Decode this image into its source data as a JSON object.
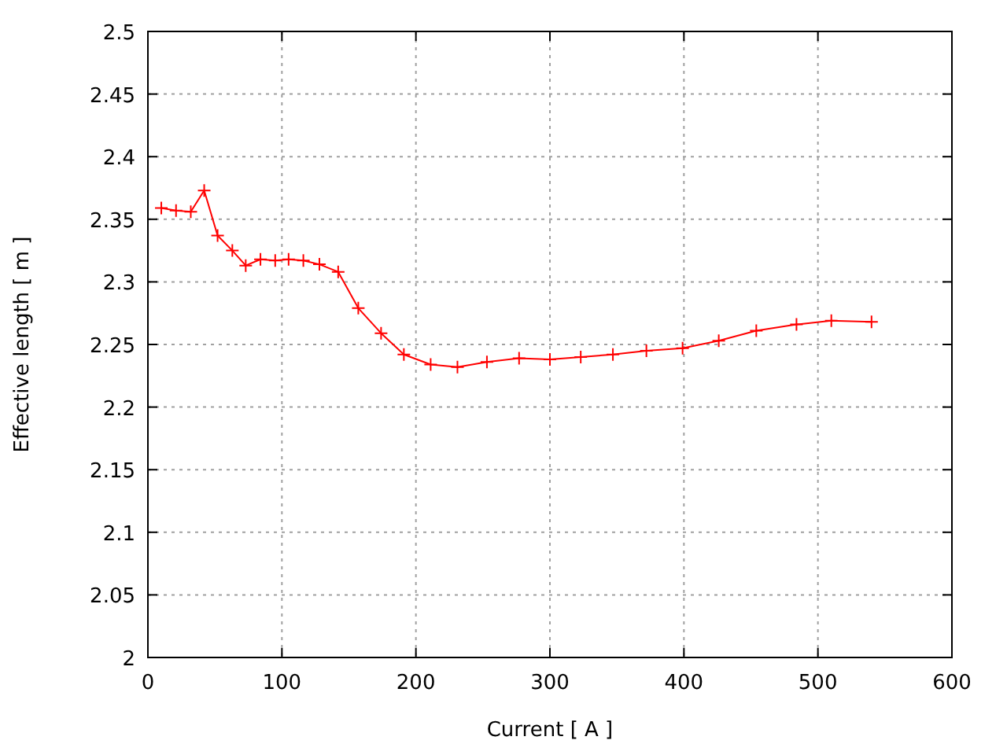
{
  "chart_data": {
    "type": "line",
    "xlabel": "Current [ A ]",
    "ylabel": "Effective length [ m ]",
    "xlim": [
      0,
      600
    ],
    "xticks": [
      0,
      100,
      200,
      300,
      400,
      500,
      600
    ],
    "ylim": [
      2,
      2.5
    ],
    "yticks": [
      2,
      2.05,
      2.1,
      2.15,
      2.2,
      2.25,
      2.3,
      2.35,
      2.4,
      2.45,
      2.5
    ],
    "grid": true,
    "marker": "cross",
    "line_style": "solid",
    "series": [
      {
        "color": "#ff0000",
        "x": [
          10,
          21,
          32,
          42,
          52,
          63,
          73,
          84,
          95,
          105,
          116,
          128,
          142,
          157,
          174,
          191,
          211,
          231,
          253,
          277,
          300,
          323,
          347,
          372,
          399,
          426,
          454,
          484,
          510,
          540
        ],
        "values": [
          2.359,
          2.357,
          2.356,
          2.373,
          2.337,
          2.325,
          2.313,
          2.318,
          2.317,
          2.318,
          2.317,
          2.314,
          2.308,
          2.279,
          2.259,
          2.242,
          2.234,
          2.232,
          2.236,
          2.239,
          2.238,
          2.24,
          2.242,
          2.245,
          2.247,
          2.253,
          2.261,
          2.266,
          2.269,
          2.268
        ]
      }
    ]
  }
}
